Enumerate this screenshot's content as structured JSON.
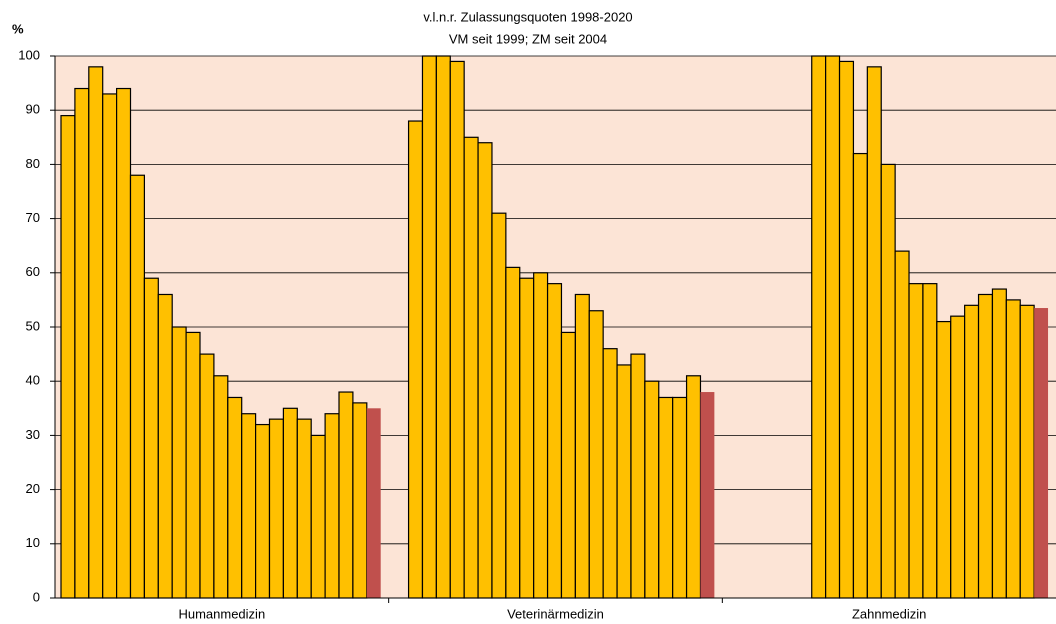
{
  "chart_data": {
    "type": "bar",
    "title": "v.l.n.r. Zulassungsquoten 1998-2020",
    "subtitle": "VM seit 1999; ZM seit 2004",
    "y_label": "%",
    "categories": [
      "Humanmedizin",
      "Veterinärmedizin",
      "Zahnmedizin"
    ],
    "values": [
      [
        89,
        94,
        98,
        93,
        94,
        78,
        59,
        56,
        50,
        49,
        45,
        41,
        37,
        34,
        32,
        33,
        35,
        33,
        30,
        34,
        38,
        36,
        35
      ],
      [
        88,
        100,
        100,
        99,
        85,
        84,
        71,
        61,
        59,
        60,
        58,
        49,
        56,
        53,
        46,
        43,
        45,
        40,
        37,
        37,
        41,
        38
      ],
      [
        100,
        100,
        99,
        82,
        98,
        80,
        64,
        58,
        58,
        51,
        52,
        54,
        56,
        57,
        55,
        54,
        53.5
      ]
    ],
    "color": "#FFC000",
    "highlight_color": "#C0504D",
    "background": "#FCE4D6",
    "ylim": [
      0,
      100
    ],
    "yticks": [
      0,
      10,
      20,
      30,
      40,
      50,
      60,
      70,
      80,
      90,
      100
    ],
    "grid": true
  }
}
